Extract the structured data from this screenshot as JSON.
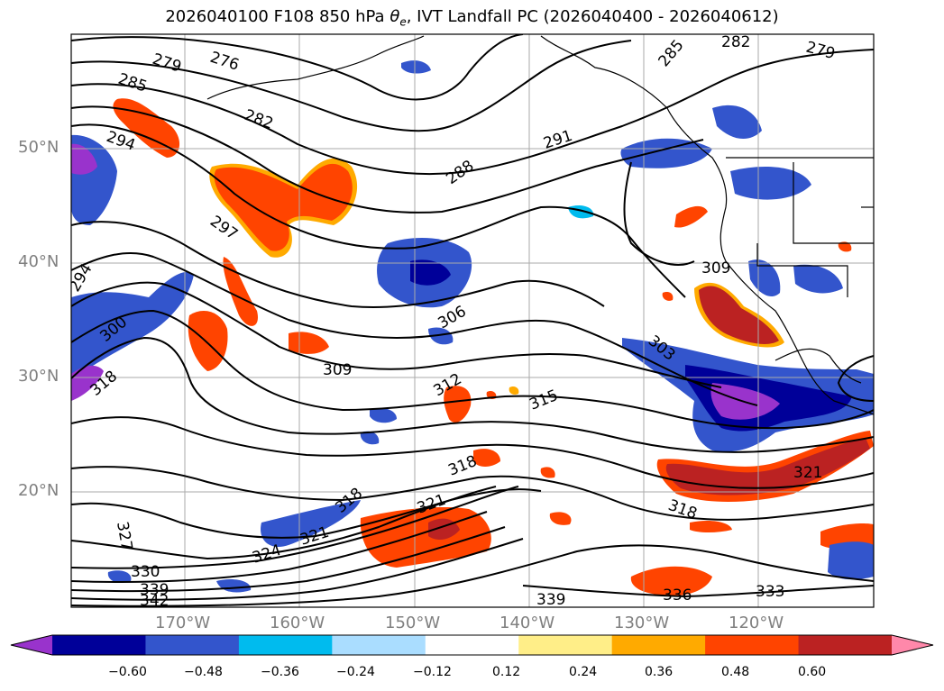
{
  "title": {
    "prefix": "2026040100 F108 850 hPa ",
    "theta": "θ",
    "theta_sub": "e",
    "suffix": ", IVT Landfall PC (2026040400 - 2026040612)"
  },
  "axes": {
    "lat_labels": [
      "50°N",
      "40°N",
      "30°N",
      "20°N"
    ],
    "lon_labels": [
      "170°W",
      "160°W",
      "150°W",
      "140°W",
      "130°W",
      "120°W"
    ]
  },
  "colorbar": {
    "labels": [
      "−0.60",
      "−0.48",
      "−0.36",
      "−0.24",
      "−0.12",
      "0.12",
      "0.24",
      "0.36",
      "0.48",
      "0.60"
    ],
    "colors": [
      "#9933cc",
      "#000099",
      "#3355cc",
      "#00bbee",
      "#aaddff",
      "#ffffff",
      "#ffee88",
      "#ffaa00",
      "#ff4400",
      "#bb2222",
      "#ff88aa"
    ]
  },
  "contour_labels": [
    {
      "text": "279"
    },
    {
      "text": "276"
    },
    {
      "text": "285"
    },
    {
      "text": "282"
    },
    {
      "text": "294"
    },
    {
      "text": "291"
    },
    {
      "text": "288"
    },
    {
      "text": "297"
    },
    {
      "text": "294"
    },
    {
      "text": "300"
    },
    {
      "text": "306"
    },
    {
      "text": "309"
    },
    {
      "text": "318"
    },
    {
      "text": "312"
    },
    {
      "text": "315"
    },
    {
      "text": "303"
    },
    {
      "text": "309"
    },
    {
      "text": "318"
    },
    {
      "text": "318"
    },
    {
      "text": "321"
    },
    {
      "text": "324"
    },
    {
      "text": "321"
    },
    {
      "text": "321"
    },
    {
      "text": "327"
    },
    {
      "text": "330"
    },
    {
      "text": "339"
    },
    {
      "text": "342"
    },
    {
      "text": "339"
    },
    {
      "text": "336"
    },
    {
      "text": "333"
    },
    {
      "text": "318"
    },
    {
      "text": "282"
    },
    {
      "text": "279"
    },
    {
      "text": "285"
    }
  ]
}
